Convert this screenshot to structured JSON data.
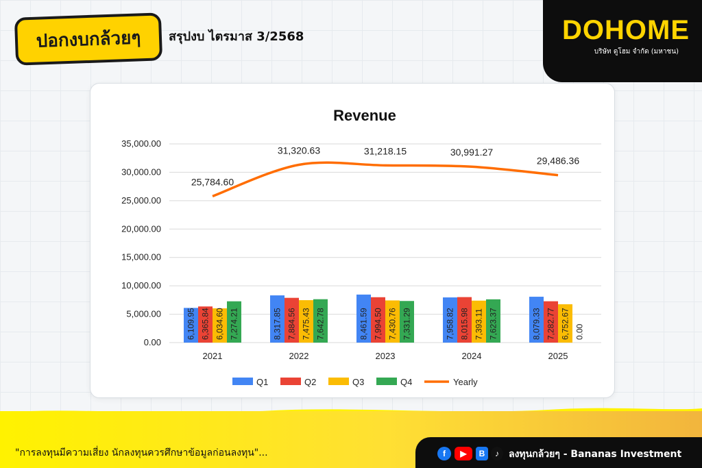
{
  "header": {
    "logo_text": "ปอกงบกล้วยๆ",
    "title": "สรุปงบ  ไตรมาส 3/2568"
  },
  "company": {
    "name": "DOHOME",
    "subtitle": "บริษัท ดูโฮม จำกัด (มหาชน)"
  },
  "footer": {
    "disclaimer": "\"การลงทุนมีความเสี่ยง  นักลงทุนควรศึกษาข้อมูลก่อนลงทุน\"...",
    "social_text": "ลงทุนกล้วยๆ - Bananas Investment",
    "icons": [
      "facebook-icon",
      "youtube-icon",
      "blockdit-icon",
      "tiktok-icon"
    ]
  },
  "colors": {
    "q1": "#4285f4",
    "q2": "#ea4335",
    "q3": "#fbbc04",
    "q4": "#34a853",
    "yearly": "#ff6d01",
    "brand_yellow": "#ffd400"
  },
  "chart_data": {
    "type": "bar",
    "title": "Revenue",
    "categories": [
      "2021",
      "2022",
      "2023",
      "2024",
      "2025"
    ],
    "series": [
      {
        "name": "Q1",
        "type": "bar",
        "values": [
          6109.95,
          8317.85,
          8461.59,
          7958.82,
          8079.33
        ],
        "labels": [
          "6,109.95",
          "8,317.85",
          "8,461.59",
          "7,958.82",
          "8,079.33"
        ]
      },
      {
        "name": "Q2",
        "type": "bar",
        "values": [
          6365.84,
          7884.56,
          7994.5,
          8015.98,
          7282.77
        ],
        "labels": [
          "6,365.84",
          "7,884.56",
          "7,994.50",
          "8,015.98",
          "7,282.77"
        ]
      },
      {
        "name": "Q3",
        "type": "bar",
        "values": [
          6034.6,
          7475.43,
          7430.76,
          7393.11,
          6752.67
        ],
        "labels": [
          "6,034.60",
          "7,475.43",
          "7,430.76",
          "7,393.11",
          "6,752.67"
        ]
      },
      {
        "name": "Q4",
        "type": "bar",
        "values": [
          7274.21,
          7642.78,
          7331.29,
          7623.37,
          0.0
        ],
        "labels": [
          "7,274.21",
          "7,642.78",
          "7,331.29",
          "7,623.37",
          "0.00"
        ]
      },
      {
        "name": "Yearly",
        "type": "line",
        "values": [
          25784.6,
          31320.63,
          31218.15,
          30991.27,
          29486.36
        ],
        "labels": [
          "25,784.60",
          "31,320.63",
          "31,218.15",
          "30,991.27",
          "29,486.36"
        ]
      }
    ],
    "ylim": [
      0,
      35000
    ],
    "yticks": [
      "0.00",
      "5,000.00",
      "10,000.00",
      "15,000.00",
      "20,000.00",
      "25,000.00",
      "30,000.00",
      "35,000.00"
    ],
    "grid": true,
    "legend": "bottom"
  }
}
